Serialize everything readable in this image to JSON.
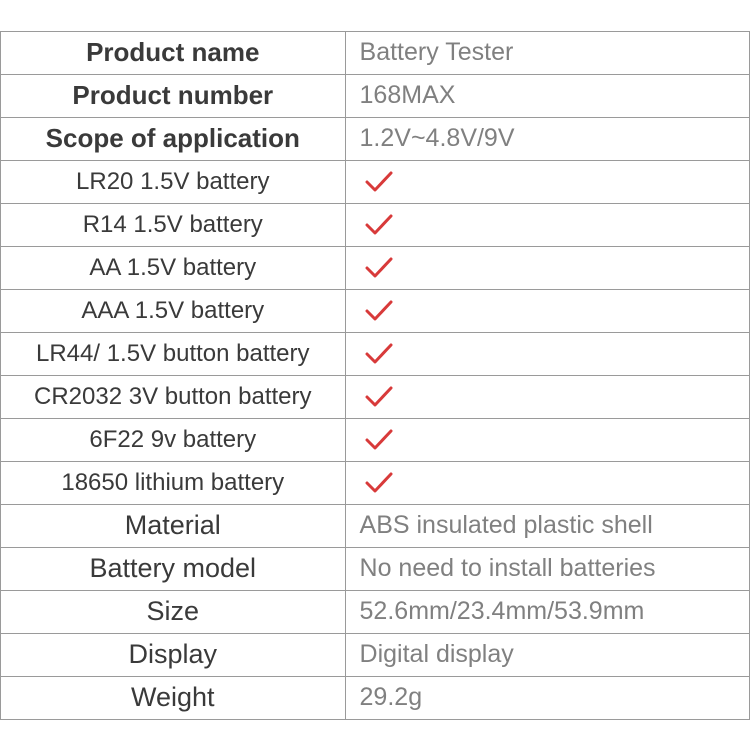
{
  "table": {
    "border_color": "#9a9a9a",
    "label_color": "#3a3a3a",
    "value_color": "#808080",
    "check_color": "#d83a3a",
    "background_color": "#ffffff",
    "rows": [
      {
        "label": "Product name",
        "value": "Battery Tester",
        "label_style": "bold",
        "value_type": "text"
      },
      {
        "label": "Product number",
        "value": "168MAX",
        "label_style": "bold",
        "value_type": "text"
      },
      {
        "label": "Scope of application",
        "value": "1.2V~4.8V/9V",
        "label_style": "bold",
        "value_type": "text"
      },
      {
        "label": "LR20 1.5V battery",
        "value": "check",
        "label_style": "normal",
        "value_type": "check"
      },
      {
        "label": "R14 1.5V battery",
        "value": "check",
        "label_style": "normal",
        "value_type": "check"
      },
      {
        "label": "AA 1.5V battery",
        "value": "check",
        "label_style": "normal",
        "value_type": "check"
      },
      {
        "label": "AAA 1.5V battery",
        "value": "check",
        "label_style": "normal",
        "value_type": "check"
      },
      {
        "label": "LR44/ 1.5V button battery",
        "value": "check",
        "label_style": "normal",
        "value_type": "check"
      },
      {
        "label": "CR2032 3V button battery",
        "value": "check",
        "label_style": "normal",
        "value_type": "check"
      },
      {
        "label": "6F22 9v battery",
        "value": "check",
        "label_style": "normal",
        "value_type": "check"
      },
      {
        "label": "18650 lithium battery",
        "value": "check",
        "label_style": "normal",
        "value_type": "check"
      },
      {
        "label": "Material",
        "value": "ABS insulated plastic shell",
        "label_style": "big",
        "value_type": "text"
      },
      {
        "label": "Battery model",
        "value": "No need to install batteries",
        "label_style": "big",
        "value_type": "text"
      },
      {
        "label": "Size",
        "value": "52.6mm/23.4mm/53.9mm",
        "label_style": "big",
        "value_type": "text"
      },
      {
        "label": "Display",
        "value": "Digital display",
        "label_style": "big",
        "value_type": "text"
      },
      {
        "label": "Weight",
        "value": "29.2g",
        "label_style": "big",
        "value_type": "text"
      }
    ]
  }
}
